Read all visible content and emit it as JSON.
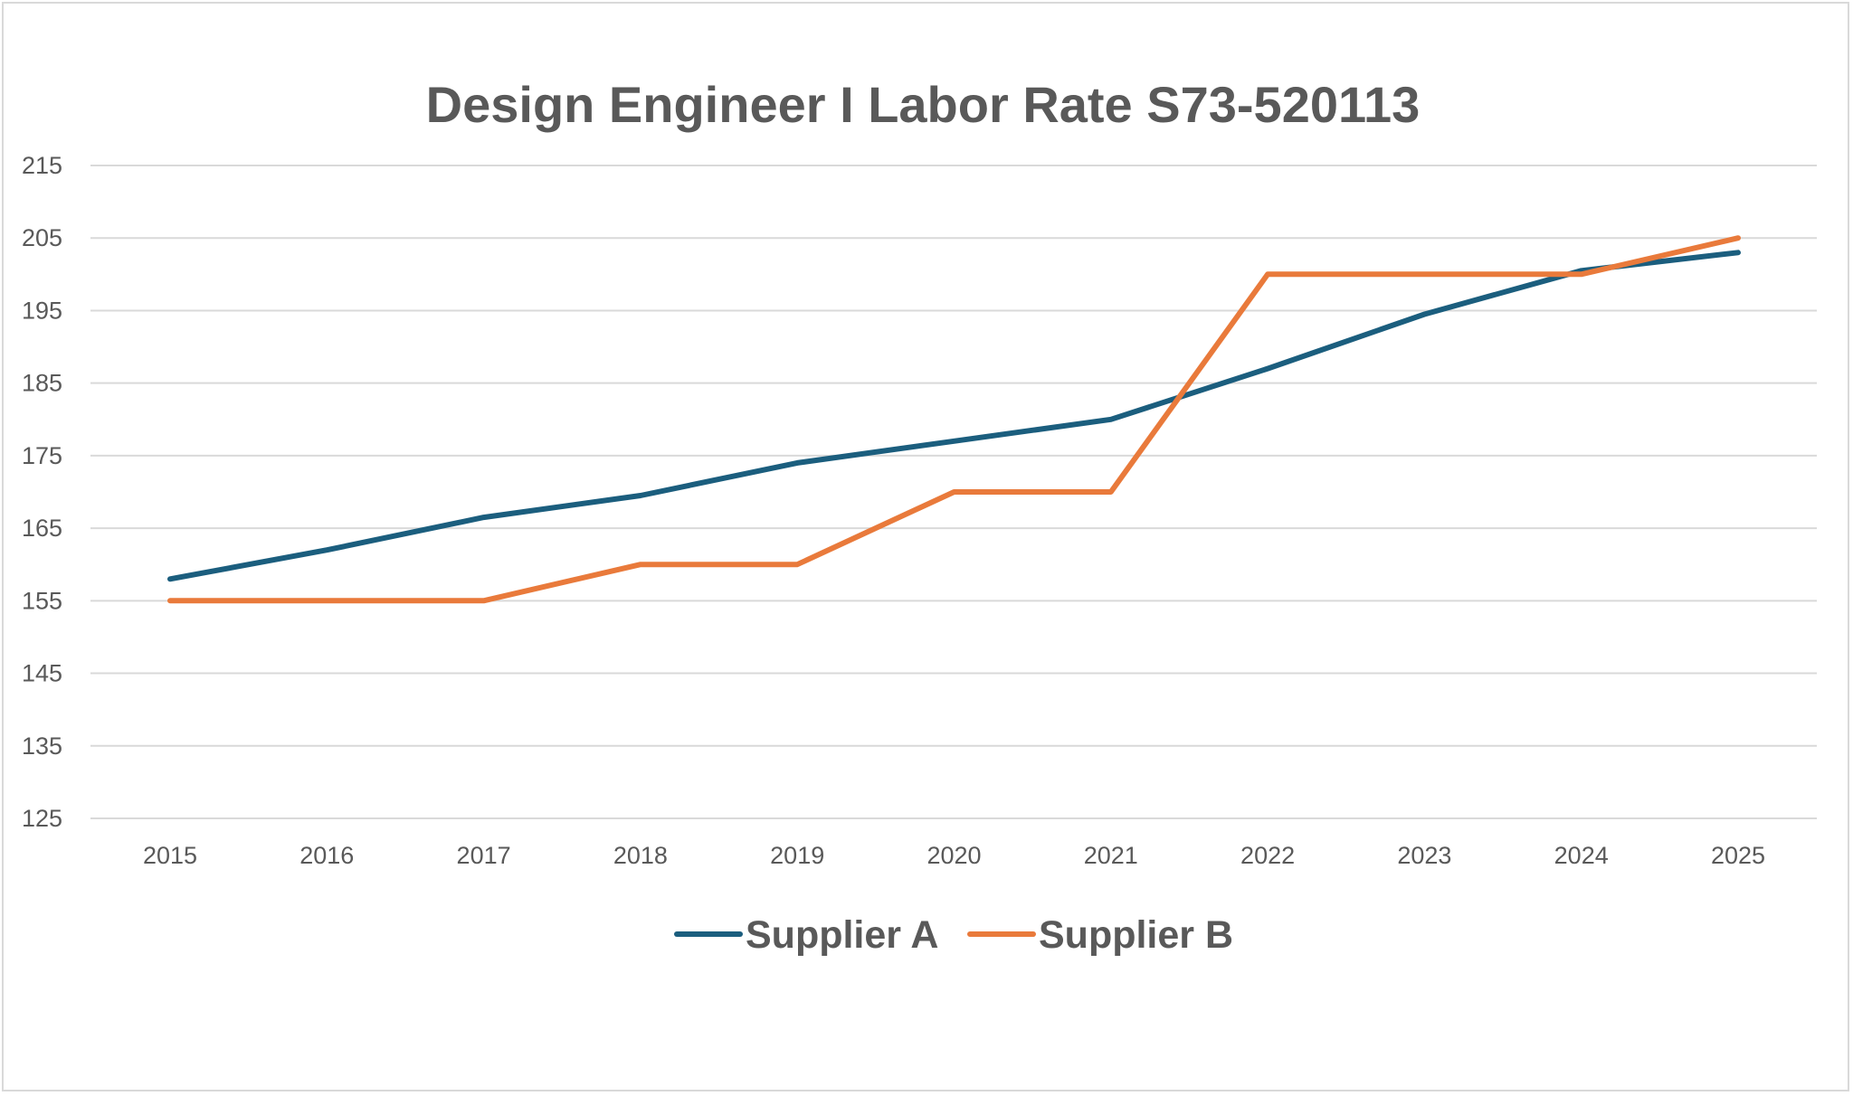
{
  "chart_data": {
    "type": "line",
    "title": "Design Engineer I Labor Rate S73-520113",
    "xlabel": "",
    "ylabel": "",
    "categories": [
      "2015",
      "2016",
      "2017",
      "2018",
      "2019",
      "2020",
      "2021",
      "2022",
      "2023",
      "2024",
      "2025"
    ],
    "ylim": [
      125,
      215
    ],
    "yticks": [
      125,
      135,
      145,
      155,
      165,
      175,
      185,
      195,
      205,
      215
    ],
    "grid": true,
    "legend_position": "bottom",
    "series": [
      {
        "name": "Supplier A",
        "color": "#1b5e7e",
        "values": [
          158,
          162,
          166.5,
          169.5,
          174,
          177,
          180,
          187,
          194.5,
          200.5,
          203
        ]
      },
      {
        "name": "Supplier B",
        "color": "#e97a3b",
        "values": [
          155,
          155,
          155,
          160,
          160,
          170,
          170,
          200,
          200,
          200,
          205
        ]
      }
    ]
  }
}
